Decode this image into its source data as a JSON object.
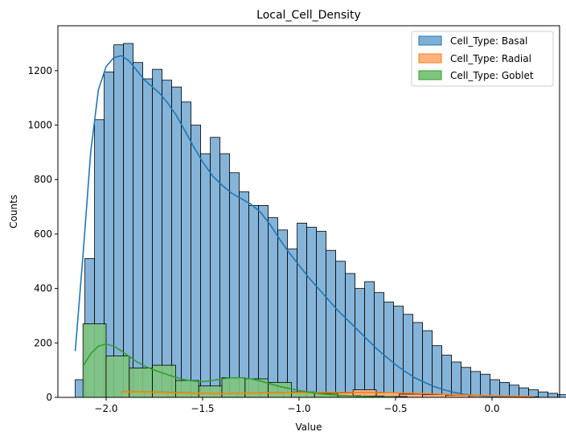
{
  "chart_data": {
    "type": "histogram",
    "title": "Local_Cell_Density",
    "xlabel": "Value",
    "ylabel": "Counts",
    "xlim": [
      -2.25,
      0.35
    ],
    "ylim": [
      0,
      1365
    ],
    "xticks": [
      -2.0,
      -1.5,
      -1.0,
      -0.5,
      0.0
    ],
    "xtick_labels": [
      "−2.0",
      "−1.5",
      "−1.0",
      "−0.5",
      "0.0"
    ],
    "yticks": [
      0,
      200,
      400,
      600,
      800,
      1000,
      1200
    ],
    "yticks_labels": [
      "0",
      "200",
      "400",
      "600",
      "800",
      "1000",
      "1200"
    ],
    "legend_position": "top-right",
    "grid": false,
    "series": [
      {
        "name": "Cell_Type: Basal",
        "fill": "#7fb0d6",
        "line": "#1f77b4",
        "bin_start": -2.16,
        "bin_width": 0.05,
        "values": [
          65,
          510,
          1020,
          1195,
          1295,
          1300,
          1230,
          1170,
          1205,
          1165,
          1140,
          1085,
          1000,
          895,
          955,
          895,
          825,
          755,
          705,
          705,
          660,
          615,
          545,
          640,
          625,
          610,
          540,
          500,
          455,
          400,
          425,
          385,
          350,
          335,
          305,
          275,
          245,
          190,
          155,
          130,
          110,
          95,
          85,
          65,
          55,
          45,
          35,
          28,
          20,
          15,
          10,
          7,
          5,
          3,
          2,
          1,
          1
        ],
        "kde": [
          [
            -2.16,
            170
          ],
          [
            -2.12,
            520
          ],
          [
            -2.08,
            900
          ],
          [
            -2.04,
            1130
          ],
          [
            -2.0,
            1215
          ],
          [
            -1.96,
            1248
          ],
          [
            -1.92,
            1255
          ],
          [
            -1.88,
            1235
          ],
          [
            -1.84,
            1200
          ],
          [
            -1.8,
            1165
          ],
          [
            -1.76,
            1140
          ],
          [
            -1.72,
            1115
          ],
          [
            -1.68,
            1080
          ],
          [
            -1.64,
            1040
          ],
          [
            -1.6,
            990
          ],
          [
            -1.55,
            925
          ],
          [
            -1.5,
            865
          ],
          [
            -1.45,
            815
          ],
          [
            -1.4,
            780
          ],
          [
            -1.35,
            750
          ],
          [
            -1.3,
            730
          ],
          [
            -1.25,
            710
          ],
          [
            -1.2,
            680
          ],
          [
            -1.15,
            635
          ],
          [
            -1.1,
            580
          ],
          [
            -1.05,
            530
          ],
          [
            -1.0,
            485
          ],
          [
            -0.95,
            440
          ],
          [
            -0.9,
            400
          ],
          [
            -0.85,
            360
          ],
          [
            -0.8,
            320
          ],
          [
            -0.75,
            285
          ],
          [
            -0.7,
            250
          ],
          [
            -0.65,
            215
          ],
          [
            -0.6,
            180
          ],
          [
            -0.55,
            150
          ],
          [
            -0.5,
            120
          ],
          [
            -0.45,
            95
          ],
          [
            -0.4,
            72
          ],
          [
            -0.35,
            55
          ],
          [
            -0.3,
            40
          ],
          [
            -0.25,
            28
          ],
          [
            -0.2,
            19
          ],
          [
            -0.15,
            12
          ],
          [
            -0.1,
            8
          ],
          [
            -0.05,
            5
          ],
          [
            0.0,
            3
          ],
          [
            0.1,
            1
          ],
          [
            0.22,
            0
          ]
        ]
      },
      {
        "name": "Cell_Type: Radial",
        "fill": "#ffb27f",
        "line": "#ff7f0e",
        "bin_start": -1.92,
        "bin_width": 0.12,
        "values": [
          22,
          22,
          20,
          14,
          14,
          16,
          20,
          18,
          16,
          16,
          28,
          16,
          12,
          10,
          8,
          6,
          4,
          2
        ],
        "kde": [
          [
            -1.92,
            20
          ],
          [
            -1.8,
            20
          ],
          [
            -1.6,
            16
          ],
          [
            -1.4,
            14
          ],
          [
            -1.2,
            16
          ],
          [
            -1.0,
            18
          ],
          [
            -0.8,
            18
          ],
          [
            -0.6,
            18
          ],
          [
            -0.4,
            15
          ],
          [
            -0.2,
            10
          ],
          [
            0.0,
            6
          ],
          [
            0.22,
            3
          ]
        ]
      },
      {
        "name": "Cell_Type: Goblet",
        "fill": "#7fc47f",
        "line": "#2ca02c",
        "bin_start": -2.12,
        "bin_width": 0.12,
        "values": [
          270,
          152,
          108,
          118,
          62,
          42,
          72,
          68,
          55,
          20,
          15,
          6,
          5,
          3
        ],
        "kde": [
          [
            -2.12,
            115
          ],
          [
            -2.08,
            160
          ],
          [
            -2.04,
            188
          ],
          [
            -2.0,
            196
          ],
          [
            -1.96,
            188
          ],
          [
            -1.92,
            170
          ],
          [
            -1.88,
            150
          ],
          [
            -1.84,
            130
          ],
          [
            -1.8,
            115
          ],
          [
            -1.75,
            100
          ],
          [
            -1.7,
            88
          ],
          [
            -1.65,
            76
          ],
          [
            -1.6,
            66
          ],
          [
            -1.55,
            60
          ],
          [
            -1.5,
            58
          ],
          [
            -1.45,
            62
          ],
          [
            -1.4,
            68
          ],
          [
            -1.35,
            72
          ],
          [
            -1.3,
            72
          ],
          [
            -1.25,
            68
          ],
          [
            -1.2,
            60
          ],
          [
            -1.15,
            50
          ],
          [
            -1.1,
            40
          ],
          [
            -1.0,
            25
          ],
          [
            -0.9,
            14
          ],
          [
            -0.8,
            8
          ],
          [
            -0.7,
            4
          ],
          [
            -0.6,
            2
          ],
          [
            -0.5,
            1
          ]
        ]
      }
    ]
  }
}
